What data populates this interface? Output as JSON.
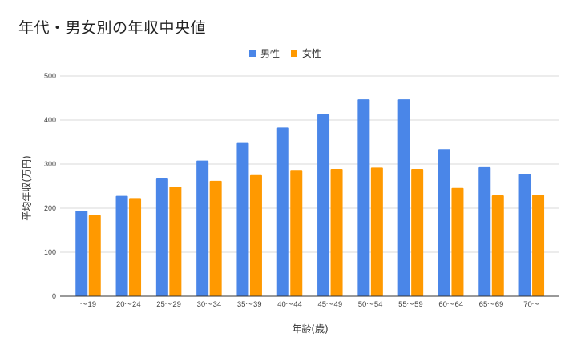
{
  "title": "年代・男女別の年収中央値",
  "legend": [
    {
      "label": "男性",
      "color": "#4a86e8"
    },
    {
      "label": "女性",
      "color": "#ff9900"
    }
  ],
  "chart_data": {
    "type": "bar",
    "title": "年代・男女別の年収中央値",
    "xlabel": "年齢(歳)",
    "ylabel": "平均年収(万円)",
    "categories": [
      "〜19",
      "20〜24",
      "25〜29",
      "30〜34",
      "35〜39",
      "40〜44",
      "45〜49",
      "50〜54",
      "55〜59",
      "60〜64",
      "65〜69",
      "70〜"
    ],
    "series": [
      {
        "name": "男性",
        "color": "#4a86e8",
        "values": [
          194,
          228,
          269,
          308,
          348,
          383,
          413,
          447,
          447,
          334,
          293,
          277
        ]
      },
      {
        "name": "女性",
        "color": "#ff9900",
        "values": [
          184,
          223,
          249,
          262,
          275,
          285,
          289,
          292,
          289,
          246,
          229,
          231
        ]
      }
    ],
    "ylim": [
      0,
      500
    ],
    "yticks": [
      0,
      100,
      200,
      300,
      400,
      500
    ],
    "grid": true,
    "legend_position": "top"
  }
}
